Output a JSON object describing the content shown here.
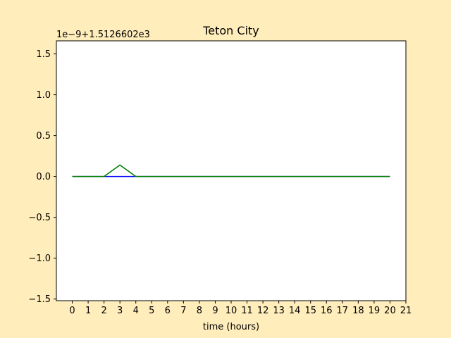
{
  "chart_data": {
    "type": "line",
    "title": "Teton City",
    "xlabel": "time (hours)",
    "ylabel": "",
    "offset_label": "1e−9+1.5126602e3",
    "xlim": [
      -1,
      21
    ],
    "ylim": [
      -1.52,
      1.66
    ],
    "x_ticks": [
      0,
      1,
      2,
      3,
      4,
      5,
      6,
      7,
      8,
      9,
      10,
      11,
      12,
      13,
      14,
      15,
      16,
      17,
      18,
      19,
      20,
      21
    ],
    "y_ticks": [
      -1.5,
      -1.0,
      -0.5,
      0.0,
      0.5,
      1.0,
      1.5
    ],
    "y_tick_labels": [
      "−1.5",
      "−1.0",
      "−0.5",
      "0.0",
      "0.5",
      "1.0",
      "1.5"
    ],
    "grid": false,
    "legend": "none",
    "x": [
      0,
      1,
      2,
      3,
      4,
      5,
      6,
      7,
      8,
      9,
      10,
      11,
      12,
      13,
      14,
      15,
      16,
      17,
      18,
      19,
      20
    ],
    "series": [
      {
        "color": "#0000ff",
        "values": [
          0,
          0,
          0,
          0,
          0,
          0,
          0,
          0,
          0,
          0,
          0,
          0,
          0,
          0,
          0,
          0,
          0,
          0,
          0,
          0,
          0
        ]
      },
      {
        "color": "#008000",
        "values": [
          0,
          0,
          0,
          0.14,
          0,
          0,
          0,
          0,
          0,
          0,
          0,
          0,
          0,
          0,
          0,
          0,
          0,
          0,
          0,
          0,
          0
        ]
      }
    ]
  },
  "colors": {
    "figure_background": "#ffedbb",
    "plot_background": "#ffffff",
    "axis": "#000000"
  }
}
